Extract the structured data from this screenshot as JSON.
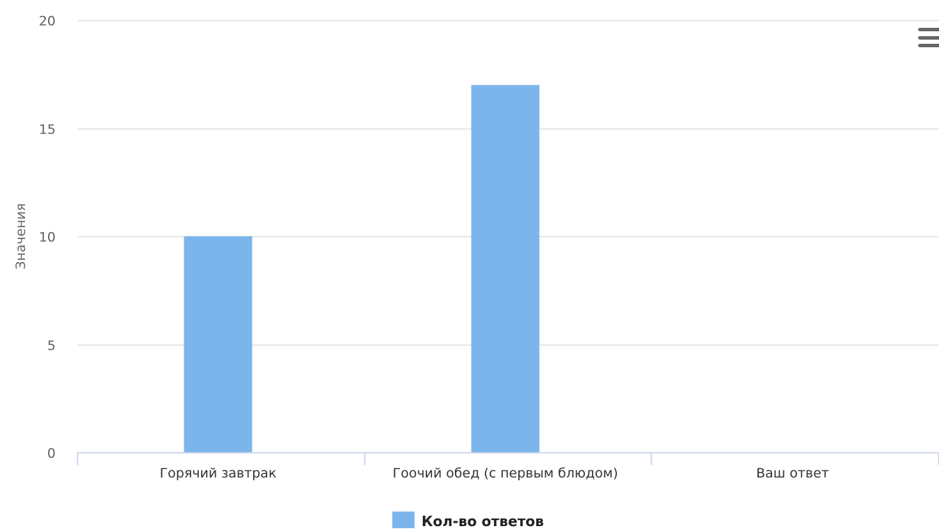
{
  "chart_data": {
    "type": "bar",
    "categories": [
      "Горячий завтрак",
      "Гоочий обед (с первым блюдом)",
      "Ваш ответ"
    ],
    "series": [
      {
        "name": "Кол-во ответов",
        "values": [
          10,
          17,
          0
        ],
        "color": "#7cb5ec"
      }
    ],
    "ylabel": "Значения",
    "ylim": [
      0,
      20
    ],
    "yticks": [
      0,
      5,
      10,
      15,
      20
    ],
    "grid": true,
    "legend": "bottom-center"
  },
  "menu": {
    "icon": "hamburger-menu-icon"
  },
  "colors": {
    "grid": "#e6e6e6",
    "axis": "#ccd6eb",
    "menu": "#666666"
  }
}
